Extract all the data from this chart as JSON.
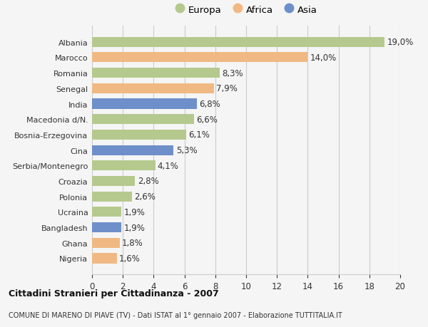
{
  "countries": [
    "Albania",
    "Marocco",
    "Romania",
    "Senegal",
    "India",
    "Macedonia d/N.",
    "Bosnia-Erzegovina",
    "Cina",
    "Serbia/Montenegro",
    "Croazia",
    "Polonia",
    "Ucraina",
    "Bangladesh",
    "Ghana",
    "Nigeria"
  ],
  "values": [
    19.0,
    14.0,
    8.3,
    7.9,
    6.8,
    6.6,
    6.1,
    5.3,
    4.1,
    2.8,
    2.6,
    1.9,
    1.9,
    1.8,
    1.6
  ],
  "labels": [
    "19,0%",
    "14,0%",
    "8,3%",
    "7,9%",
    "6,8%",
    "6,6%",
    "6,1%",
    "5,3%",
    "4,1%",
    "2,8%",
    "2,6%",
    "1,9%",
    "1,9%",
    "1,8%",
    "1,6%"
  ],
  "continents": [
    "Europa",
    "Africa",
    "Europa",
    "Africa",
    "Asia",
    "Europa",
    "Europa",
    "Asia",
    "Europa",
    "Europa",
    "Europa",
    "Europa",
    "Asia",
    "Africa",
    "Africa"
  ],
  "colors": {
    "Europa": "#b5c98e",
    "Africa": "#f0b984",
    "Asia": "#6e8fc9"
  },
  "legend": [
    "Europa",
    "Africa",
    "Asia"
  ],
  "legend_colors": [
    "#b5c98e",
    "#f0b984",
    "#6e8fc9"
  ],
  "xlim": [
    0,
    20
  ],
  "xticks": [
    0,
    2,
    4,
    6,
    8,
    10,
    12,
    14,
    16,
    18,
    20
  ],
  "title": "Cittadini Stranieri per Cittadinanza - 2007",
  "subtitle": "COMUNE DI MARENO DI PIAVE (TV) - Dati ISTAT al 1° gennaio 2007 - Elaborazione TUTTITALIA.IT",
  "background_color": "#f5f5f5",
  "bar_height": 0.65,
  "label_fontsize": 8.5,
  "tick_fontsize": 8.5,
  "ytick_fontsize": 8.0
}
